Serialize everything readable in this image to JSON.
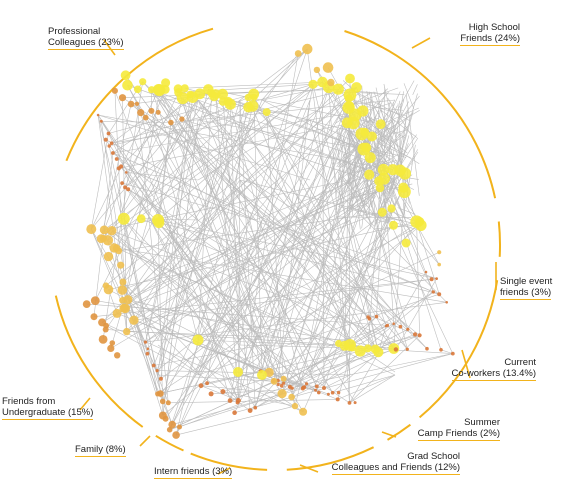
{
  "colors": {
    "ring": "#f2b31c",
    "edge": "#bdbdbd",
    "node_yellow": "#f5ea3c",
    "node_light_orange": "#f0c050",
    "node_orange": "#e09540",
    "node_dark_orange": "#d9783a"
  },
  "groups": [
    {
      "id": "professional",
      "line1": "Professional",
      "line2": "Colleagues (23%)"
    },
    {
      "id": "highschool",
      "line1": "High School",
      "line2": "Friends (24%)"
    },
    {
      "id": "single",
      "line1": "Single event",
      "line2": "friends (3%)"
    },
    {
      "id": "coworkers",
      "line1": "Current",
      "line2": "Co-workers (13.4%)"
    },
    {
      "id": "summer",
      "line1": "Summer",
      "line2": "Camp Friends (2%)"
    },
    {
      "id": "grad",
      "line1": "Grad School",
      "line2": "Colleagues and Friends (12%)"
    },
    {
      "id": "intern",
      "line1": "Intern friends (3%)"
    },
    {
      "id": "family",
      "line1": "Family (8%)"
    },
    {
      "id": "undergrad",
      "line1": "Friends from",
      "line2": "Undergraduate (15%)"
    }
  ]
}
